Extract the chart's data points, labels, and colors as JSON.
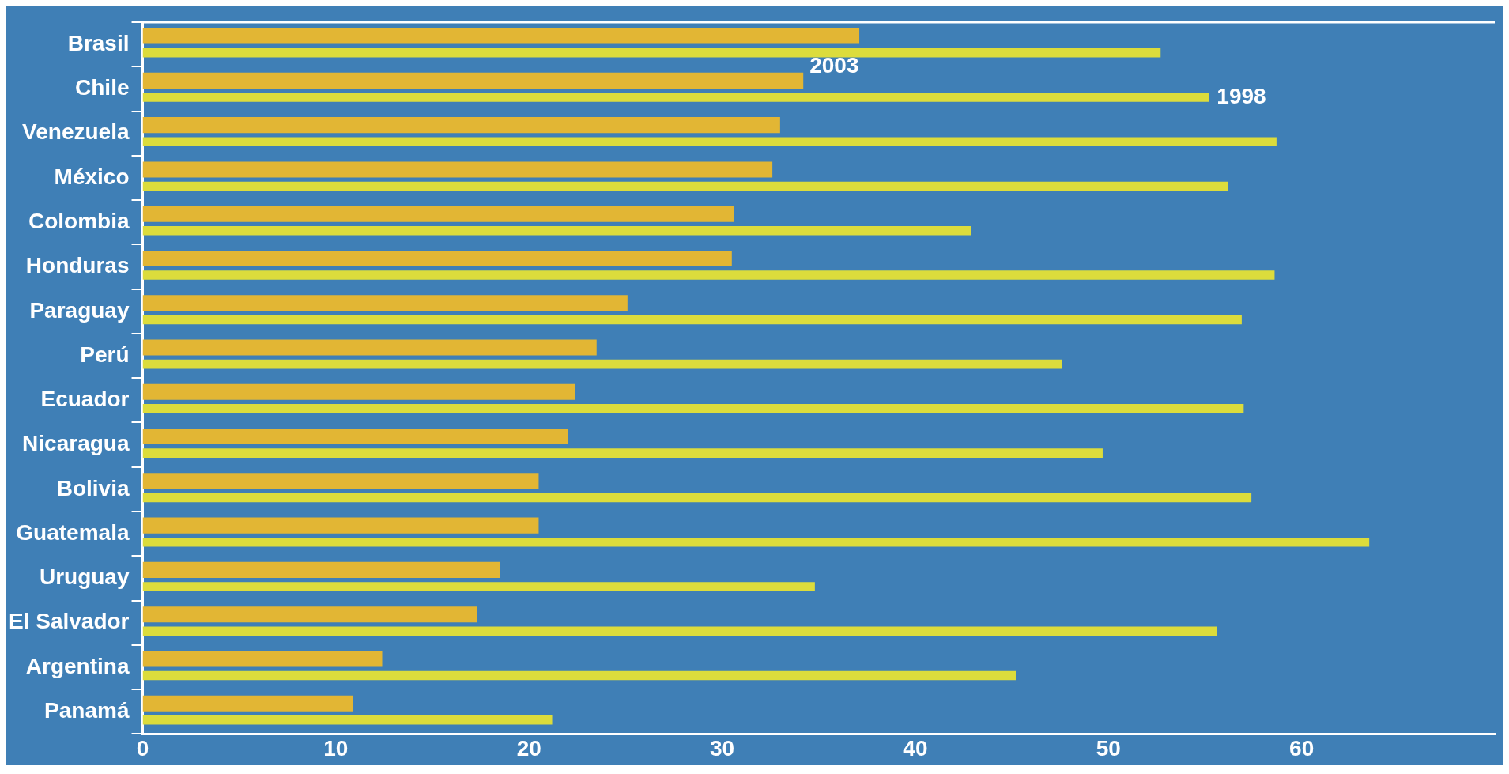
{
  "chart_data": {
    "type": "bar",
    "orientation": "horizontal",
    "categories": [
      "Brasil",
      "Chile",
      "Venezuela",
      "México",
      "Colombia",
      "Honduras",
      "Paraguay",
      "Perú",
      "Ecuador",
      "Nicaragua",
      "Bolivia",
      "Guatemala",
      "Uruguay",
      "El Salvador",
      "Argentina",
      "Panamá"
    ],
    "series": [
      {
        "name": "2003",
        "color": "#e2b634",
        "values": [
          37.1,
          34.2,
          33.0,
          32.6,
          30.6,
          30.5,
          25.1,
          23.5,
          22.4,
          22.0,
          20.5,
          20.5,
          18.5,
          17.3,
          12.4,
          10.9
        ]
      },
      {
        "name": "1998",
        "color": "#dcdc3c",
        "values": [
          52.7,
          55.2,
          58.7,
          56.2,
          42.9,
          58.6,
          56.9,
          47.6,
          57.0,
          49.7,
          57.4,
          63.5,
          34.8,
          55.6,
          45.2,
          21.2
        ]
      }
    ],
    "xlim": [
      0,
      70
    ],
    "xticks": [
      0,
      10,
      20,
      30,
      40,
      50,
      60
    ],
    "grid": false,
    "legend": false
  }
}
